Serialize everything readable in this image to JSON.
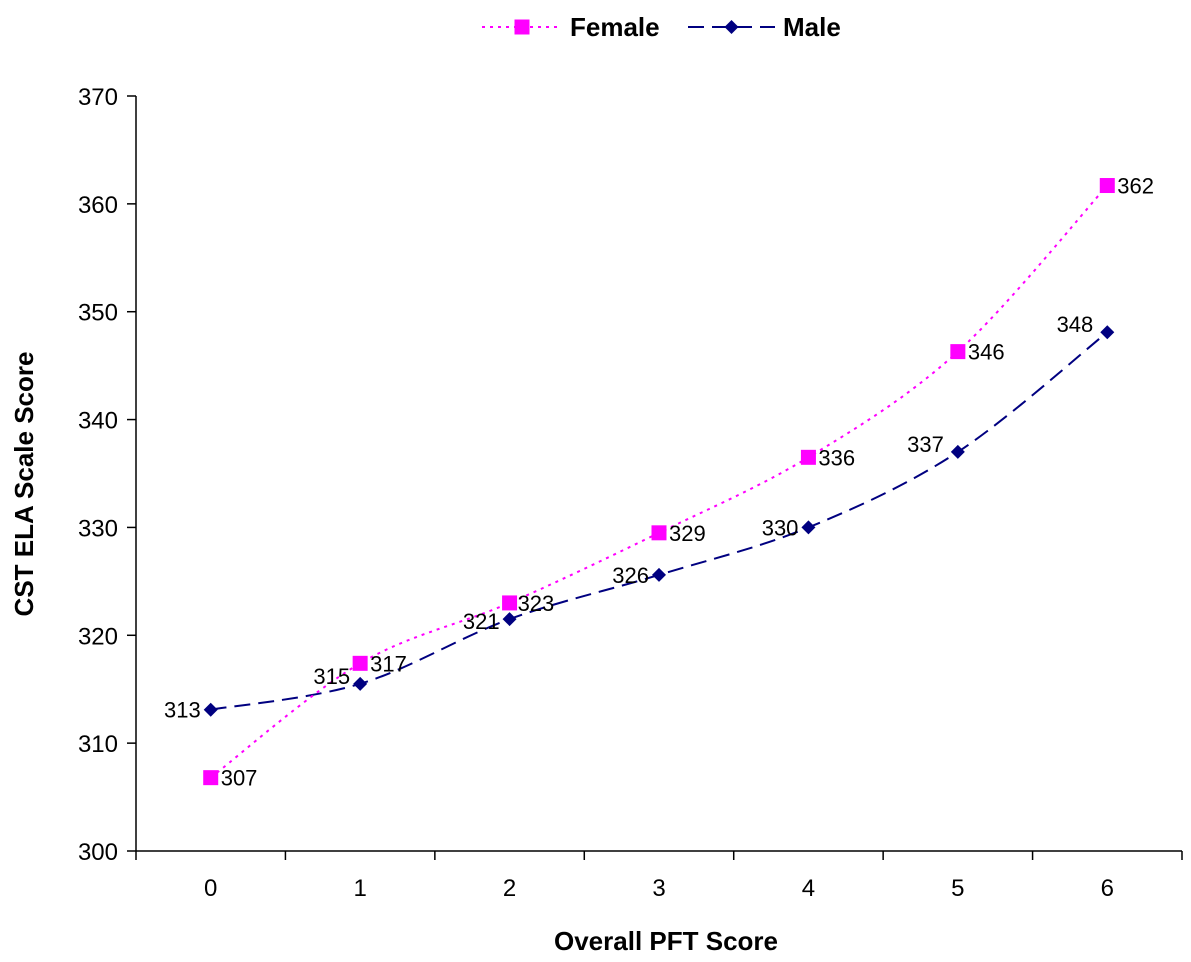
{
  "chart_data": {
    "type": "line",
    "xlabel": "Overall PFT Score",
    "ylabel": "CST ELA Scale Score",
    "x": [
      0,
      1,
      2,
      3,
      4,
      5,
      6
    ],
    "ylim": [
      300,
      370
    ],
    "yticks": [
      300,
      310,
      320,
      330,
      340,
      350,
      360,
      370
    ],
    "grid": false,
    "legend_position": "top-center",
    "series": [
      {
        "name": "Female",
        "values": [
          306.8,
          317.4,
          323.0,
          329.5,
          336.5,
          346.3,
          361.7
        ],
        "labels": [
          "307",
          "317",
          "323",
          "329",
          "336",
          "346",
          "362"
        ],
        "color": "#ff00ff",
        "line_style": "dotted",
        "marker": "square"
      },
      {
        "name": "Male",
        "values": [
          313.1,
          315.5,
          321.5,
          325.6,
          330.0,
          337.0,
          348.1
        ],
        "labels": [
          "313",
          "315",
          "321",
          "326",
          "330",
          "337",
          "348"
        ],
        "color": "#000080",
        "line_style": "dashed",
        "marker": "diamond"
      }
    ]
  }
}
